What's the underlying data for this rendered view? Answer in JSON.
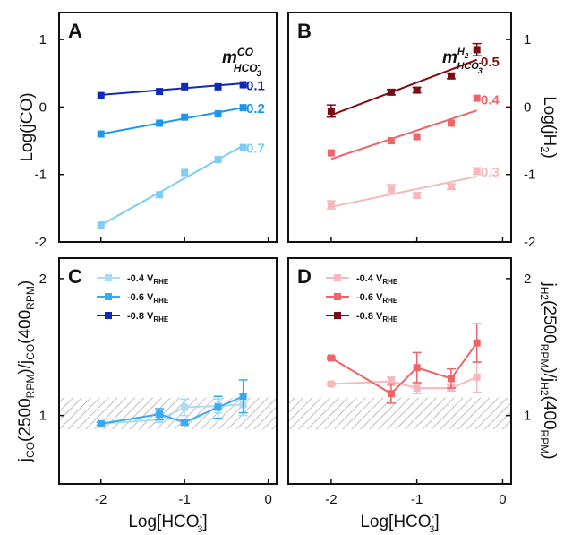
{
  "chart_data": [
    {
      "panel": "A",
      "type": "scatter",
      "ylabel": "Log(jCO)",
      "ylim": [
        -2,
        1.4
      ],
      "xlim": [
        -2.5,
        0.1
      ],
      "yticks": [
        -2,
        -1,
        0,
        1
      ],
      "m_label": {
        "main": "m",
        "sup": "CO",
        "sub": "HCO",
        "sub_sub": "3",
        "sub_sup": "-"
      },
      "series": [
        {
          "label": "0.1",
          "color": "#0d2ab8",
          "x": [
            -2,
            -1.3,
            -1,
            -0.6,
            -0.3
          ],
          "y": [
            0.17,
            0.23,
            0.3,
            0.3,
            0.33
          ],
          "fit": [
            [
              -2,
              0.18
            ],
            [
              -0.3,
              0.35
            ]
          ]
        },
        {
          "label": "0.2",
          "color": "#1e96f0",
          "x": [
            -2,
            -1.3,
            -1,
            -0.6,
            -0.3
          ],
          "y": [
            -0.4,
            -0.24,
            -0.15,
            -0.1,
            -0.01
          ],
          "fit": [
            [
              -2,
              -0.4
            ],
            [
              -0.3,
              -0.01
            ]
          ]
        },
        {
          "label": "0.7",
          "color": "#7dcdf5",
          "x": [
            -2,
            -1.3,
            -1,
            -0.6,
            -0.3
          ],
          "y": [
            -1.75,
            -1.3,
            -0.97,
            -0.78,
            -0.6
          ],
          "fit": [
            [
              -2,
              -1.75
            ],
            [
              -0.3,
              -0.57
            ]
          ]
        }
      ]
    },
    {
      "panel": "B",
      "type": "scatter",
      "ylabel": "Log(jH2)",
      "ylim": [
        -2,
        1.4
      ],
      "xlim": [
        -2.5,
        0.1
      ],
      "yticks": [
        -2,
        -1,
        0,
        1
      ],
      "m_label": {
        "main": "m",
        "sup": "H",
        "sup_sub": "2",
        "sub": "HCO",
        "sub_sub": "3",
        "sub_sup": "-"
      },
      "series": [
        {
          "label": "0.5",
          "color": "#7b0d12",
          "x": [
            -2,
            -1.3,
            -1,
            -0.6,
            -0.3
          ],
          "y": [
            -0.06,
            0.22,
            0.25,
            0.46,
            0.85
          ],
          "err": [
            0.09,
            0.04,
            0.04,
            0.04,
            0.09
          ],
          "fit": [
            [
              -2,
              -0.12
            ],
            [
              -0.3,
              0.7
            ]
          ]
        },
        {
          "label": "0.4",
          "color": "#ee6468",
          "x": [
            -2,
            -1.3,
            -1,
            -0.6,
            -0.3
          ],
          "y": [
            -0.68,
            -0.5,
            -0.44,
            -0.24,
            0.13
          ],
          "fit": [
            [
              -2,
              -0.77
            ],
            [
              -0.3,
              -0.05
            ]
          ]
        },
        {
          "label": "0.3",
          "color": "#f6b8bc",
          "x": [
            -2,
            -1.3,
            -1,
            -0.6,
            -0.3
          ],
          "y": [
            -1.45,
            -1.22,
            -1.31,
            -1.18,
            -0.95
          ],
          "err": [
            0.06,
            0.07,
            0.04,
            0.04,
            0.05
          ],
          "fit": [
            [
              -2,
              -1.48
            ],
            [
              -0.3,
              -1.03
            ]
          ]
        }
      ]
    },
    {
      "panel": "C",
      "type": "line",
      "ylabel": "jCO(2500RPM)/jCO(400RPM)",
      "xlabel": "Log[HCO3-]",
      "xticks": [
        -2,
        -1,
        0
      ],
      "ylim": [
        0.5,
        2.15
      ],
      "yticks": [
        1,
        2
      ],
      "band": [
        0.9,
        1.13
      ],
      "series": [
        {
          "label": "-0.4 V",
          "sub": "RHE",
          "color": "#a8dcf7",
          "x": [
            -2,
            -1.3,
            -1,
            -0.6,
            -0.3
          ],
          "y": [
            0.94,
            0.97,
            1.06,
            1.07,
            1.08
          ],
          "err": [
            0.01,
            0.02,
            0.06,
            0.05,
            0.08
          ]
        },
        {
          "label": "-0.6 V",
          "sub": "RHE",
          "color": "#38aaf2",
          "x": [
            -2,
            -1.3,
            -1,
            -0.6,
            -0.3
          ],
          "y": [
            0.94,
            1.01,
            0.95,
            1.06,
            1.14
          ],
          "err": [
            0.01,
            0.04,
            0.02,
            0.08,
            0.12
          ]
        },
        {
          "label": "-0.8 V",
          "sub": "RHE",
          "color": "#0d2ab8",
          "x": [],
          "y": []
        }
      ]
    },
    {
      "panel": "D",
      "type": "line",
      "ylabel": "jH2(2500RPM)/jH2(400RPM)",
      "xlabel": "Log[HCO3-]",
      "xticks": [
        -2,
        -1,
        0
      ],
      "ylim": [
        0.5,
        2.15
      ],
      "yticks": [
        1,
        2
      ],
      "band": [
        0.9,
        1.13
      ],
      "series": [
        {
          "label": "-0.4 V",
          "sub": "RHE",
          "color": "#f6b8bc",
          "x": [
            -2,
            -1.3,
            -1,
            -0.6,
            -0.3
          ],
          "y": [
            1.23,
            1.25,
            1.2,
            1.2,
            1.28
          ],
          "err": [
            0.01,
            0.03,
            0.04,
            0.02,
            0.11
          ]
        },
        {
          "label": "-0.6 V",
          "sub": "RHE",
          "color": "#ee6468",
          "x": [
            -2,
            -1.3,
            -1,
            -0.6,
            -0.3
          ],
          "y": [
            1.42,
            1.16,
            1.35,
            1.27,
            1.53
          ],
          "err": [
            0.01,
            0.07,
            0.11,
            0.07,
            0.14
          ]
        },
        {
          "label": "-0.8 V",
          "sub": "RHE",
          "color": "#7b0d12",
          "x": [],
          "y": []
        }
      ]
    }
  ]
}
